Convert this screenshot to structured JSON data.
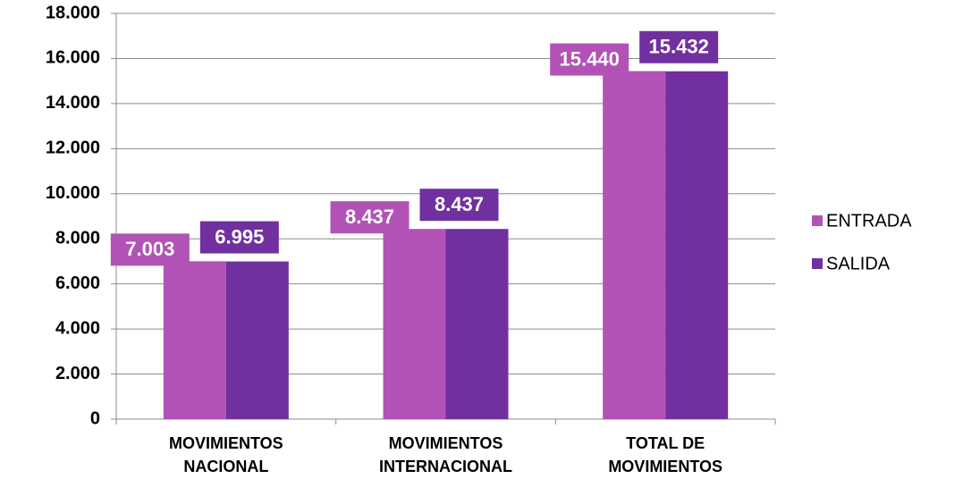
{
  "chart_data": {
    "type": "bar",
    "categories": [
      [
        "MOVIMIENTOS",
        "NACIONAL"
      ],
      [
        "MOVIMIENTOS",
        "INTERNACIONAL"
      ],
      [
        "TOTAL DE",
        "MOVIMIENTOS"
      ]
    ],
    "series": [
      {
        "name": "ENTRADA",
        "color": "#b252b6",
        "values": [
          7003,
          8437,
          15440
        ],
        "value_labels": [
          "7.003",
          "8.437",
          "15.440"
        ]
      },
      {
        "name": "SALIDA",
        "color": "#7030a0",
        "values": [
          6995,
          8437,
          15432
        ],
        "value_labels": [
          "6.995",
          "8.437",
          "15.432"
        ]
      }
    ],
    "ylim": [
      0,
      18000
    ],
    "yticks": [
      0,
      {
        "value": 2000,
        "label": "2.000"
      },
      {
        "value": 4000,
        "label": "4.000"
      },
      {
        "value": 6000,
        "label": "6.000"
      },
      {
        "value": 8000,
        "label": "8.000"
      },
      {
        "value": 10000,
        "label": "10.000"
      },
      {
        "value": 12000,
        "label": "12.000"
      },
      {
        "value": 14000,
        "label": "14.000"
      },
      {
        "value": 16000,
        "label": "16.000"
      },
      {
        "value": 18000,
        "label": "18.000"
      }
    ],
    "grid": true,
    "legend": "right"
  }
}
